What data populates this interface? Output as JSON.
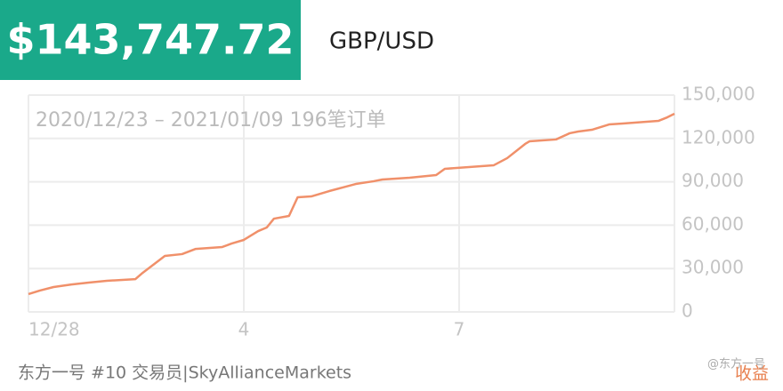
{
  "header": {
    "amount": "$143,747.72",
    "pair": "GBP/USD"
  },
  "chart_data": {
    "type": "line",
    "title": "2020/12/23 – 2021/01/09 196笔订单",
    "x": [
      0,
      0.16,
      0.35,
      0.6,
      0.84,
      1.09,
      1.49,
      1.59,
      1.9,
      2.14,
      2.33,
      2.7,
      2.83,
      3,
      3.2,
      3.32,
      3.42,
      3.63,
      3.75,
      3.94,
      4.19,
      4.38,
      4.56,
      4.81,
      4.93,
      5.31,
      5.68,
      5.8,
      6.48,
      6.67,
      6.92,
      6.98,
      7.35,
      7.54,
      7.66,
      7.85,
      8.09,
      8.28,
      8.78,
      8.9,
      9
    ],
    "series": [
      {
        "name": "收益",
        "color": "#f0906a",
        "values": [
          12300,
          14800,
          17200,
          19000,
          20300,
          21500,
          22700,
          27000,
          38700,
          40000,
          43600,
          44900,
          47300,
          49800,
          55900,
          58400,
          64500,
          66400,
          79300,
          79900,
          83600,
          86100,
          88500,
          90400,
          91600,
          92800,
          94700,
          99000,
          101400,
          106400,
          116200,
          118000,
          119300,
          123600,
          124800,
          126000,
          129700,
          130300,
          132200,
          134600,
          137100
        ]
      }
    ],
    "xlim": [
      0,
      9
    ],
    "xticks": [
      {
        "value": 0,
        "label": "12/28"
      },
      {
        "value": 3,
        "label": "4"
      },
      {
        "value": 6,
        "label": "7"
      }
    ],
    "ylim": [
      0,
      150000
    ],
    "yticks": [
      0,
      {
        "value": 30000,
        "label": "30,000"
      },
      {
        "value": 60000,
        "label": "60,000"
      },
      {
        "value": 90000,
        "label": "90,000"
      },
      {
        "value": 120000,
        "label": "120,000"
      },
      {
        "value": 150000,
        "label": "150,000"
      }
    ],
    "grid": true
  },
  "footer": {
    "caption": "东方一号 #10 交易员|SkyAllianceMarkets",
    "watermark": "@东方一号"
  }
}
